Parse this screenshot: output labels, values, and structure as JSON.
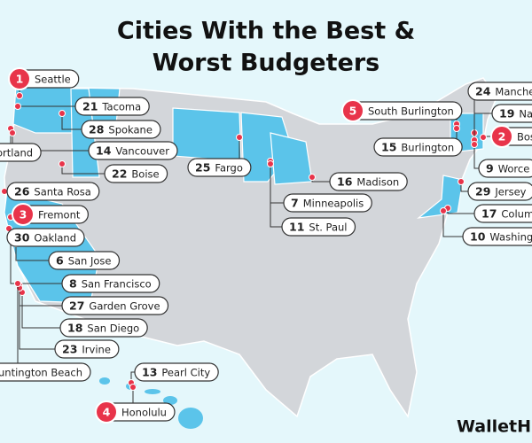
{
  "title_lines": [
    "Cities With the Best &",
    "Worst Budgeters"
  ],
  "callouts": [
    {
      "rank": 1,
      "city": "Seattle"
    },
    {
      "rank": 21,
      "city": "Tacoma"
    },
    {
      "rank": 28,
      "city": "Spokane"
    },
    {
      "city": "ortland"
    },
    {
      "rank": 14,
      "city": "Vancouver"
    },
    {
      "rank": 22,
      "city": "Boise"
    },
    {
      "rank": 26,
      "city": "Santa Rosa"
    },
    {
      "rank": 3,
      "city": "Fremont"
    },
    {
      "rank": 30,
      "city": "Oakland"
    },
    {
      "rank": 6,
      "city": "San Jose"
    },
    {
      "rank": 8,
      "city": "San Francisco"
    },
    {
      "rank": 27,
      "city": "Garden Grove"
    },
    {
      "rank": 18,
      "city": "San Diego"
    },
    {
      "rank": 23,
      "city": "Irvine"
    },
    {
      "city": "untington Beach"
    },
    {
      "rank": 13,
      "city": "Pearl City"
    },
    {
      "rank": 4,
      "city": "Honolulu"
    },
    {
      "rank": 25,
      "city": "Fargo"
    },
    {
      "rank": 7,
      "city": "Minneapolis"
    },
    {
      "rank": 16,
      "city": "Madison"
    },
    {
      "rank": 11,
      "city": "St. Paul"
    },
    {
      "rank": 5,
      "city": "South Burlington"
    },
    {
      "rank": 15,
      "city": "Burlington"
    },
    {
      "rank": 24,
      "city": "Manche"
    },
    {
      "rank": 19,
      "city": "Nas"
    },
    {
      "rank": 2,
      "city": "Bos"
    },
    {
      "rank": 9,
      "city": "Worce"
    },
    {
      "rank": 29,
      "city": "Jersey"
    },
    {
      "rank": 17,
      "city": "Colum"
    },
    {
      "rank": 10,
      "city": "Washing"
    }
  ],
  "logo": "WalletHub"
}
